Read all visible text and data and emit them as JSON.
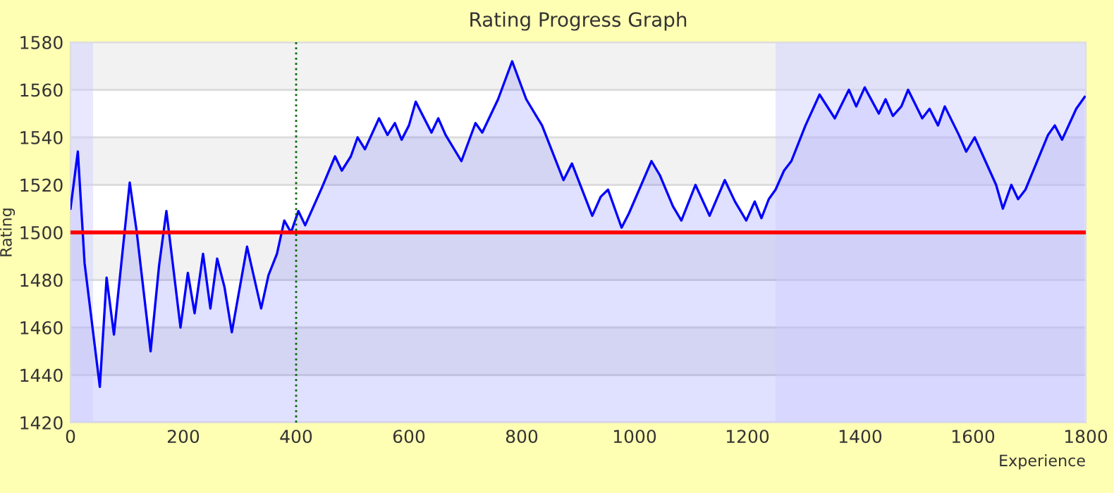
{
  "chart_data": {
    "type": "area",
    "title": "Rating Progress Graph",
    "xlabel": "Experience",
    "ylabel": "Rating",
    "series": [
      {
        "color": "#0000ff",
        "x": [
          0,
          13,
          25,
          52,
          64,
          77,
          105,
          117,
          142,
          157,
          170,
          195,
          208,
          220,
          235,
          248,
          260,
          273,
          286,
          313,
          338,
          351,
          366,
          379,
          391,
          404,
          416,
          431,
          446,
          469,
          481,
          497,
          509,
          522,
          547,
          562,
          575,
          587,
          600,
          612,
          640,
          652,
          665,
          693,
          718,
          730,
          758,
          783,
          808,
          836,
          874,
          889,
          925,
          940,
          953,
          977,
          990,
          1030,
          1045,
          1068,
          1083,
          1108,
          1133,
          1160,
          1178,
          1198,
          1213,
          1225,
          1238,
          1250,
          1265,
          1278,
          1303,
          1328,
          1355,
          1380,
          1393,
          1408,
          1433,
          1445,
          1458,
          1473,
          1485,
          1510,
          1523,
          1538,
          1550,
          1575,
          1588,
          1603,
          1641,
          1653,
          1668,
          1680,
          1693,
          1733,
          1745,
          1758,
          1783,
          1798
        ],
        "values": [
          1510,
          1534,
          1487,
          1435,
          1481,
          1457,
          1521,
          1501,
          1450,
          1486,
          1509,
          1460,
          1483,
          1466,
          1491,
          1468,
          1489,
          1477,
          1458,
          1494,
          1468,
          1482,
          1491,
          1505,
          1500,
          1509,
          1503,
          1511,
          1519,
          1532,
          1526,
          1532,
          1540,
          1535,
          1548,
          1541,
          1546,
          1539,
          1545,
          1555,
          1542,
          1548,
          1541,
          1530,
          1546,
          1542,
          1556,
          1572,
          1556,
          1545,
          1522,
          1529,
          1507,
          1515,
          1518,
          1502,
          1508,
          1530,
          1524,
          1511,
          1505,
          1520,
          1507,
          1522,
          1513,
          1505,
          1513,
          1506,
          1514,
          1518,
          1526,
          1530,
          1545,
          1558,
          1548,
          1560,
          1553,
          1561,
          1550,
          1556,
          1549,
          1553,
          1560,
          1548,
          1552,
          1545,
          1553,
          1541,
          1534,
          1540,
          1520,
          1510,
          1520,
          1514,
          1518,
          1541,
          1545,
          1539,
          1552,
          1557
        ]
      }
    ],
    "xlim": [
      0,
      1800
    ],
    "ylim": [
      1420,
      1580
    ],
    "xticks": [
      0,
      200,
      400,
      600,
      800,
      1000,
      1200,
      1400,
      1600,
      1800
    ],
    "yticks": [
      1420,
      1440,
      1460,
      1480,
      1500,
      1520,
      1540,
      1560,
      1580
    ],
    "grid": "y",
    "ref_lines": [
      {
        "axis": "y",
        "value": 1500,
        "color": "#ff0000",
        "line_style": "solid"
      },
      {
        "axis": "x",
        "value": 400,
        "color": "#006600",
        "line_style": "dotted"
      }
    ],
    "bands": [
      {
        "axis": "x",
        "from": 0,
        "to": 40,
        "color": "#ccccff"
      },
      {
        "axis": "x",
        "from": 1250,
        "to": 1800,
        "color": "#ccccff"
      }
    ]
  }
}
